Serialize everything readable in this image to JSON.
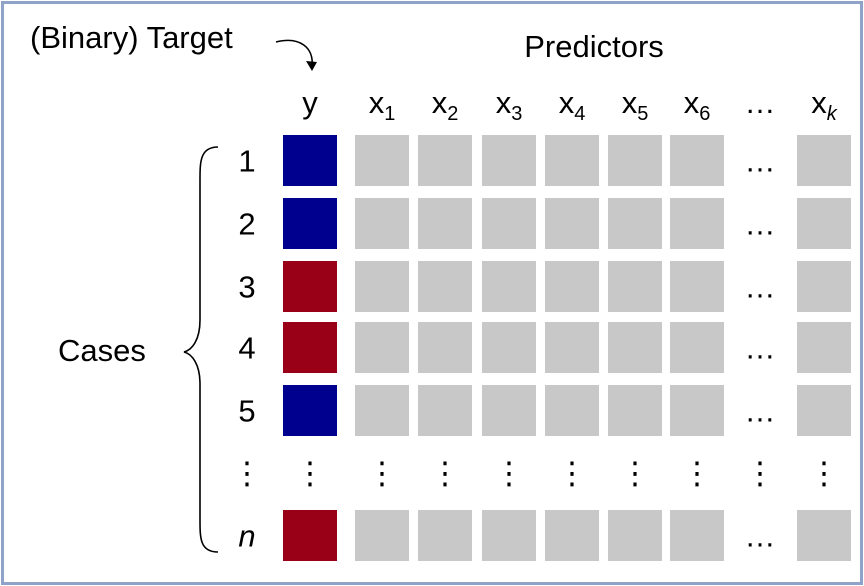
{
  "colors": {
    "frame": "#8ea3c7",
    "class_blue": "#00008f",
    "class_red": "#990018",
    "predictor_cell": "#c8c8c8"
  },
  "labels": {
    "target": "(Binary) Target",
    "predictors": "Predictors",
    "cases": "Cases",
    "target_column": "y",
    "ellipsis": "…",
    "vertical_ellipsis": "⋮"
  },
  "predictor_columns": [
    {
      "base": "x",
      "sub": "1"
    },
    {
      "base": "x",
      "sub": "2"
    },
    {
      "base": "x",
      "sub": "3"
    },
    {
      "base": "x",
      "sub": "4"
    },
    {
      "base": "x",
      "sub": "5"
    },
    {
      "base": "x",
      "sub": "6"
    },
    {
      "base": "…",
      "sub": ""
    },
    {
      "base": "x",
      "sub": "k"
    }
  ],
  "cases": [
    {
      "label": "1",
      "target_class": "blue"
    },
    {
      "label": "2",
      "target_class": "blue"
    },
    {
      "label": "3",
      "target_class": "red"
    },
    {
      "label": "4",
      "target_class": "red"
    },
    {
      "label": "5",
      "target_class": "blue"
    },
    {
      "label": "⋮",
      "target_class": "none"
    },
    {
      "label": "n",
      "target_class": "red"
    }
  ]
}
